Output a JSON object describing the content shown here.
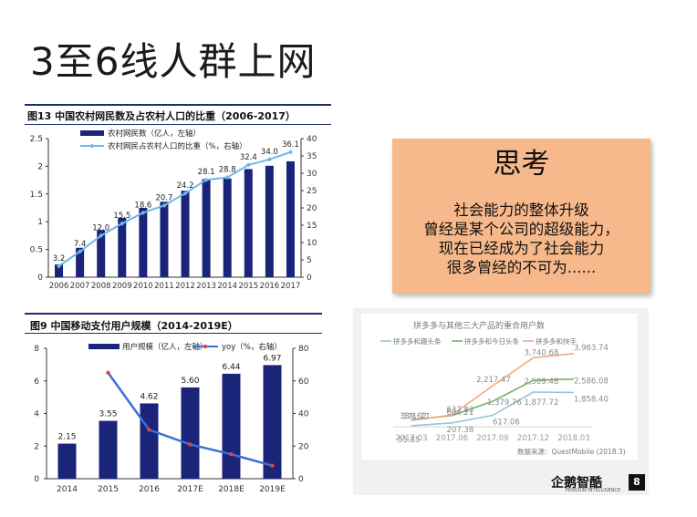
{
  "slide": {
    "title": "3至6线人群上网",
    "think_title": "思考",
    "think_lines": [
      "社会能力的整体升级",
      "曾经是某个公司的超级能力，",
      "现在已经成为了社会能力",
      "很多曾经的不可为......"
    ],
    "page_number": "8",
    "logo_text": "企鹅智酷",
    "logo_subtext": "PENGUIN INTELLIGENCE"
  },
  "colors": {
    "bar_navy": "#1a2478",
    "line_lightblue": "#6cb8ea",
    "line_blue": "#3a6fd8",
    "marker_red": "#e0453b",
    "think_bg": "#f7b98b",
    "rule_navy": "#1f2f6b",
    "series_teal": "#8ec6d7",
    "series_green": "#7bb069",
    "series_orange": "#f0a982"
  },
  "chart_data": [
    {
      "type": "bar",
      "caption": "图13 中国农村网民数及占农村人口的比重（2006-2017）",
      "categories": [
        "2006",
        "2007",
        "2008",
        "2009",
        "2010",
        "2011",
        "2012",
        "2013",
        "2014",
        "2015",
        "2016",
        "2017"
      ],
      "series": [
        {
          "name": "农村网民数（亿人，左轴）",
          "type": "bar",
          "axis": "left",
          "values": [
            0.23,
            0.53,
            0.85,
            1.07,
            1.25,
            1.36,
            1.56,
            1.77,
            1.78,
            1.95,
            2.01,
            2.09
          ]
        },
        {
          "name": "农村网民占农村人口的比重（%，右轴）",
          "type": "line",
          "axis": "right",
          "values": [
            3.2,
            7.4,
            12.0,
            15.5,
            18.6,
            20.7,
            24.2,
            28.1,
            28.8,
            32.4,
            34.0,
            36.1
          ],
          "data_labels": [
            "3.2",
            "7.4",
            "12.0",
            "15.5",
            "18.6",
            "20.7",
            "24.2",
            "28.1",
            "28.8",
            "32.4",
            "34.0",
            "36.1"
          ]
        }
      ],
      "y_left": {
        "min": 0,
        "max": 2.5,
        "ticks": [
          "0",
          "0.5",
          "1",
          "1.5",
          "2",
          "2.5"
        ]
      },
      "y_right": {
        "min": 0,
        "max": 40,
        "ticks": [
          "0",
          "5",
          "10",
          "15",
          "20",
          "25",
          "30",
          "35",
          "40"
        ]
      }
    },
    {
      "type": "bar",
      "caption": "图9  中国移动支付用户规模（2014-2019E）",
      "categories": [
        "2014",
        "2015",
        "2016",
        "2017E",
        "2018E",
        "2019E"
      ],
      "series": [
        {
          "name": "用户规模（亿人，左轴）",
          "type": "bar",
          "axis": "left",
          "values": [
            2.15,
            3.55,
            4.62,
            5.6,
            6.44,
            6.97
          ],
          "data_labels": [
            "2.15",
            "3.55",
            "4.62",
            "5.60",
            "6.44",
            "6.97"
          ]
        },
        {
          "name": "yoy（%，右轴）",
          "type": "line",
          "axis": "right",
          "values": [
            null,
            65,
            30,
            21,
            15,
            8
          ]
        }
      ],
      "y_left": {
        "min": 0,
        "max": 8,
        "ticks": [
          "0",
          "2",
          "4",
          "6",
          "8"
        ]
      },
      "y_right": {
        "min": 0,
        "max": 80,
        "ticks": [
          "0",
          "20",
          "40",
          "60",
          "80"
        ]
      }
    },
    {
      "type": "line",
      "title": "拼多多与其他三大产品的重合用户数",
      "source": "数据来源：QuestMobile (2018.3)",
      "categories": [
        "2017.03",
        "2017.06",
        "2017.09",
        "2017.12",
        "2018.03"
      ],
      "series": [
        {
          "name": "拼多多和趣头条",
          "values": [
            55.85,
            207.38,
            617.06,
            1877.72,
            1858.4
          ],
          "data_labels": [
            "55.85",
            "207.38",
            "617.06",
            "1,877.72",
            "1,858.40"
          ]
        },
        {
          "name": "拼多多和今日头条",
          "values": [
            371.77,
            604.21,
            1379.76,
            2509.48,
            2586.08
          ],
          "data_labels": [
            "371.77",
            "604.21",
            "1,379.76",
            "2,509.48",
            "2,586.08"
          ]
        },
        {
          "name": "拼多多和快手",
          "values": [
            339.62,
            637.83,
            2217.47,
            3740.68,
            3963.74
          ],
          "data_labels": [
            "339.62",
            "637.83",
            "2,217.47",
            "3,740.68",
            "3,963.74"
          ]
        }
      ]
    }
  ]
}
